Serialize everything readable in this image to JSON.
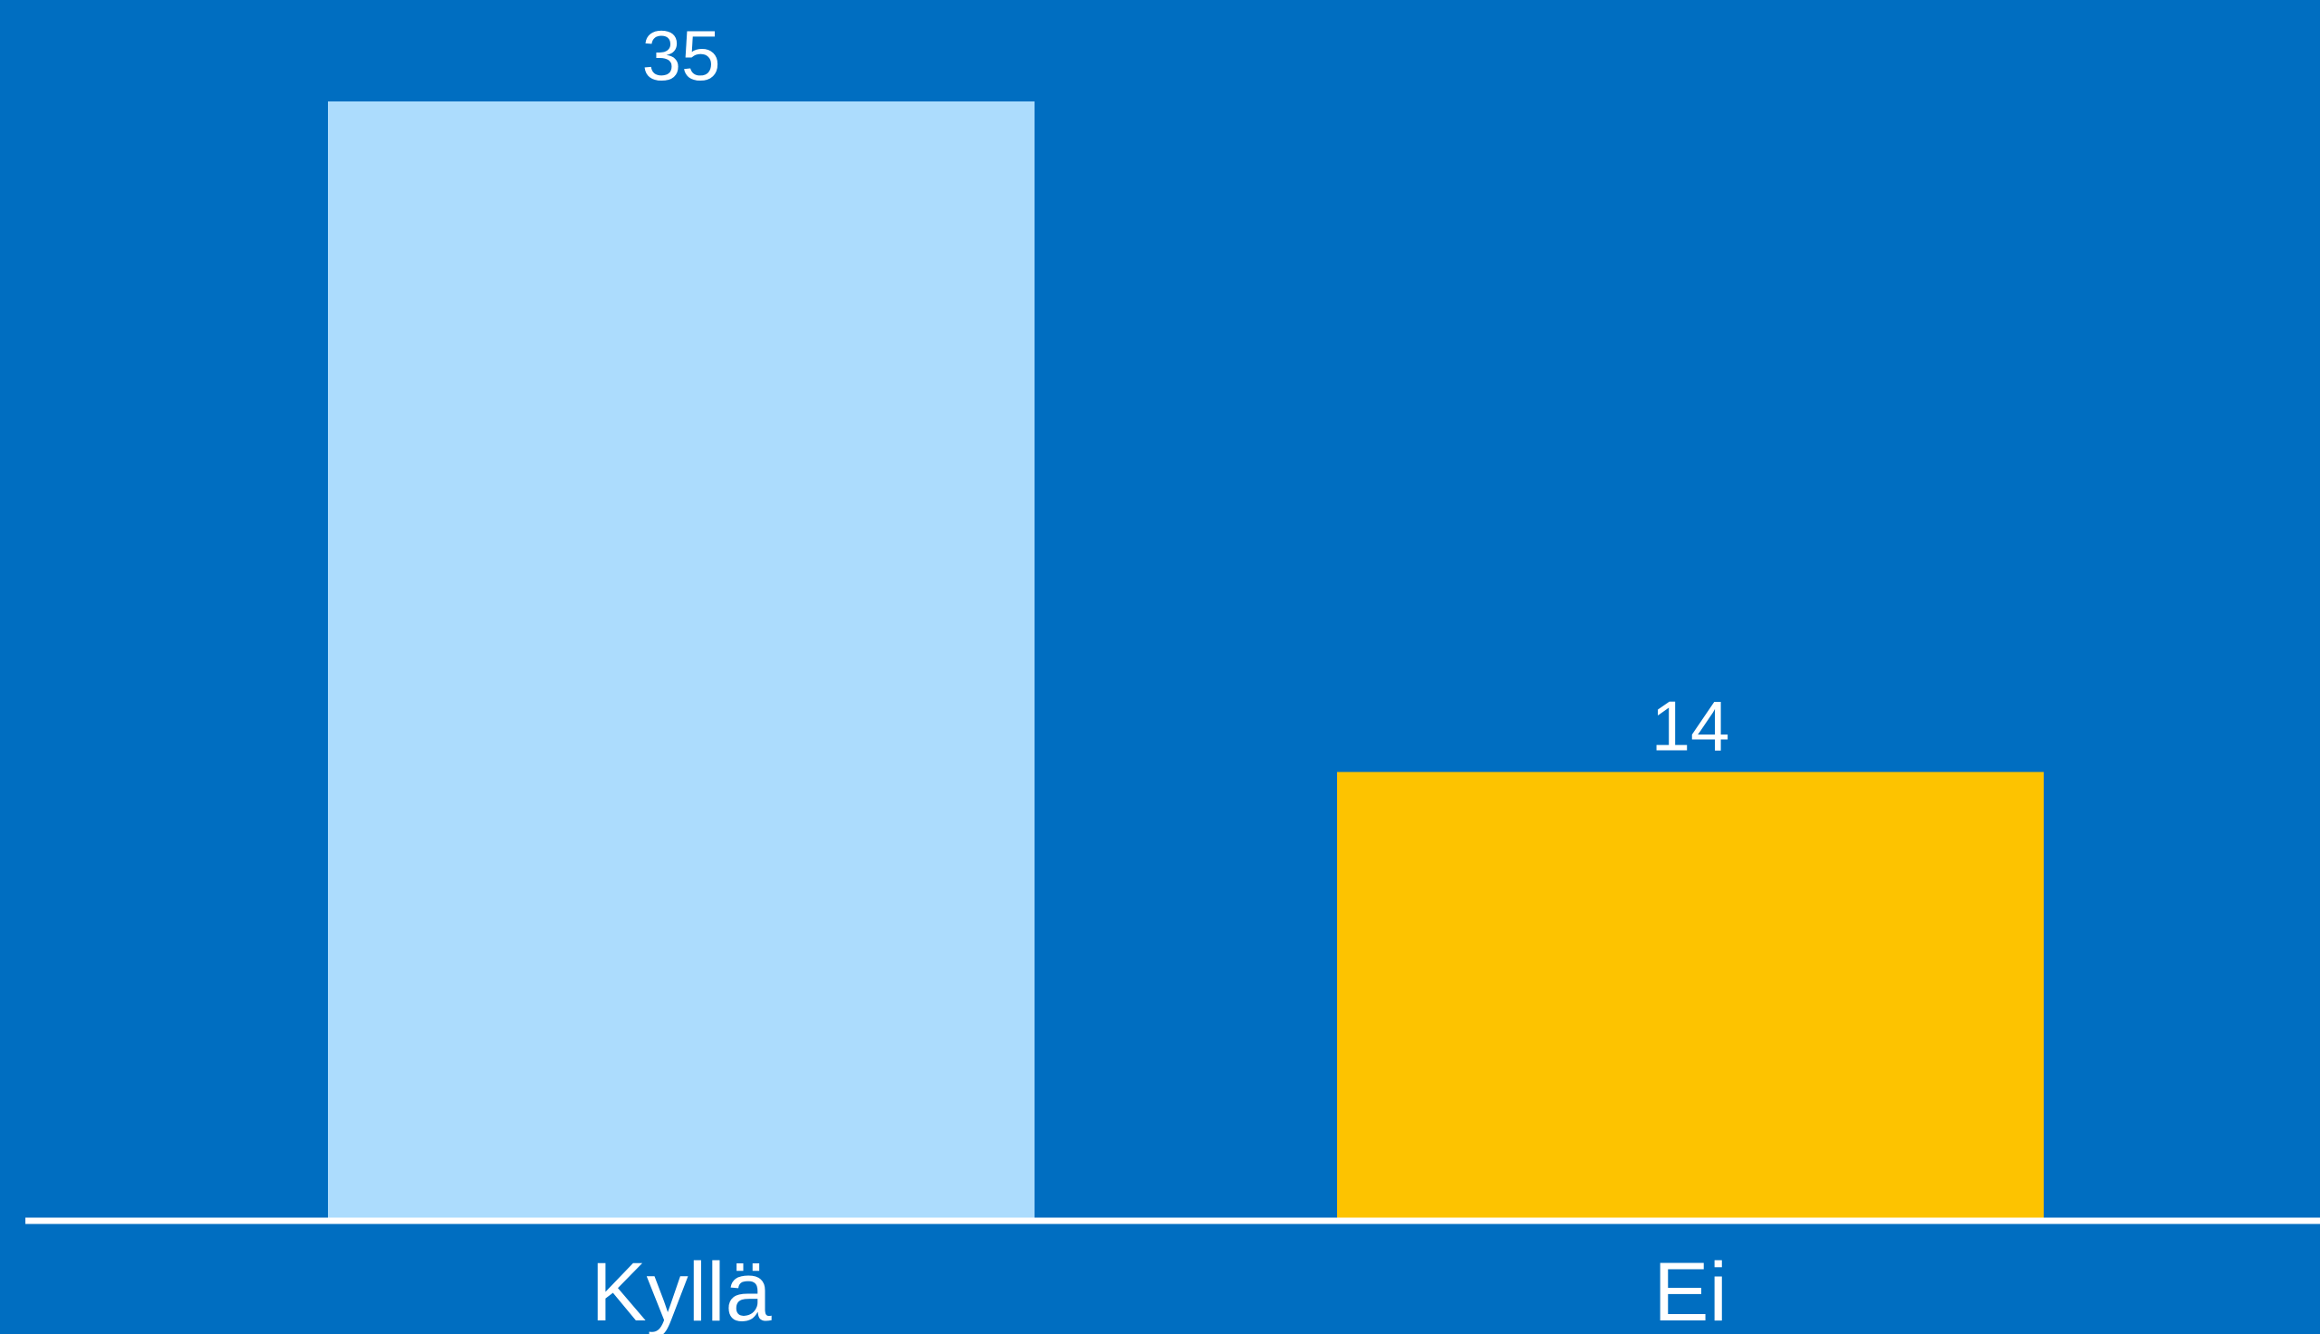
{
  "background_color": "#006EC1",
  "axis_color": "#FFFFFF",
  "chart_data": {
    "type": "bar",
    "categories": [
      "Kyllä",
      "Ei"
    ],
    "values": [
      35,
      14
    ],
    "value_labels": [
      "35",
      "14"
    ],
    "bar_colors": [
      "#ACDCFD",
      "#FDC300"
    ],
    "title": "",
    "xlabel": "",
    "ylabel": "",
    "ylim": [
      0,
      35
    ],
    "grid": false,
    "legend": "none"
  }
}
